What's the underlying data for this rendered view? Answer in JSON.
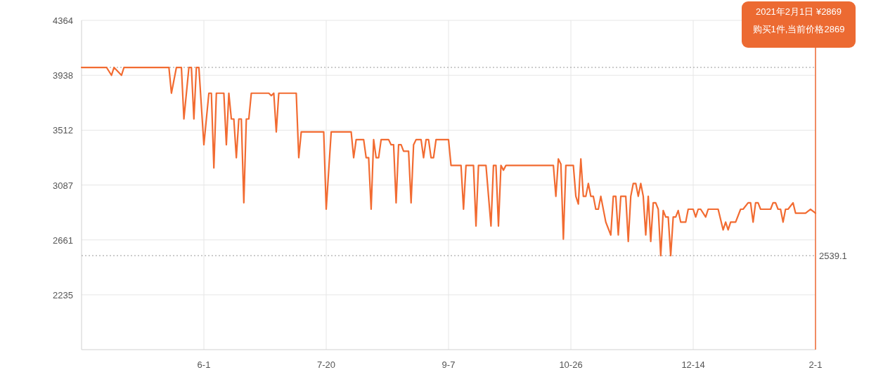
{
  "chart_data": {
    "type": "line",
    "xlim": [
      "2020-04-13",
      "2021-02-01"
    ],
    "xticks": [
      {
        "value": "2020-06-01",
        "label": "6-1"
      },
      {
        "value": "2020-07-20",
        "label": "7-20"
      },
      {
        "value": "2020-09-07",
        "label": "9-7"
      },
      {
        "value": "2020-10-26",
        "label": "10-26"
      },
      {
        "value": "2020-12-14",
        "label": "12-14"
      },
      {
        "value": "2021-02-01",
        "label": "2-1"
      }
    ],
    "ylim": [
      1810,
      4364
    ],
    "yticks": [
      4364,
      3938,
      3512,
      3087,
      2661,
      2235
    ],
    "grid": true,
    "x": [
      "2020-04-13",
      "2020-04-23",
      "2020-04-25",
      "2020-04-26",
      "2020-04-29",
      "2020-04-30",
      "2020-05-18",
      "2020-05-19",
      "2020-05-21",
      "2020-05-23",
      "2020-05-24",
      "2020-05-26",
      "2020-05-27",
      "2020-05-28",
      "2020-05-29",
      "2020-05-30",
      "2020-06-01",
      "2020-06-03",
      "2020-06-04",
      "2020-06-05",
      "2020-06-06",
      "2020-06-09",
      "2020-06-10",
      "2020-06-11",
      "2020-06-12",
      "2020-06-13",
      "2020-06-14",
      "2020-06-15",
      "2020-06-16",
      "2020-06-17",
      "2020-06-18",
      "2020-06-19",
      "2020-06-20",
      "2020-06-27",
      "2020-06-28",
      "2020-06-29",
      "2020-06-30",
      "2020-07-01",
      "2020-07-08",
      "2020-07-09",
      "2020-07-10",
      "2020-07-19",
      "2020-07-20",
      "2020-07-22",
      "2020-07-30",
      "2020-07-31",
      "2020-08-01",
      "2020-08-04",
      "2020-08-05",
      "2020-08-06",
      "2020-08-07",
      "2020-08-08",
      "2020-08-09",
      "2020-08-10",
      "2020-08-11",
      "2020-08-14",
      "2020-08-15",
      "2020-08-16",
      "2020-08-17",
      "2020-08-18",
      "2020-08-19",
      "2020-08-20",
      "2020-08-22",
      "2020-08-23",
      "2020-08-24",
      "2020-08-25",
      "2020-08-27",
      "2020-08-28",
      "2020-08-29",
      "2020-08-30",
      "2020-08-31",
      "2020-09-01",
      "2020-09-02",
      "2020-09-07",
      "2020-09-08",
      "2020-09-12",
      "2020-09-13",
      "2020-09-14",
      "2020-09-17",
      "2020-09-18",
      "2020-09-19",
      "2020-09-22",
      "2020-09-24",
      "2020-09-25",
      "2020-09-26",
      "2020-09-27",
      "2020-09-28",
      "2020-09-29",
      "2020-09-30",
      "2020-10-19",
      "2020-10-20",
      "2020-10-21",
      "2020-10-22",
      "2020-10-23",
      "2020-10-24",
      "2020-10-27",
      "2020-10-28",
      "2020-10-29",
      "2020-10-30",
      "2020-10-31",
      "2020-11-01",
      "2020-11-02",
      "2020-11-03",
      "2020-11-04",
      "2020-11-05",
      "2020-11-06",
      "2020-11-07",
      "2020-11-09",
      "2020-11-11",
      "2020-11-12",
      "2020-11-13",
      "2020-11-14",
      "2020-11-15",
      "2020-11-17",
      "2020-11-18",
      "2020-11-19",
      "2020-11-20",
      "2020-11-21",
      "2020-11-22",
      "2020-11-23",
      "2020-11-24",
      "2020-11-25",
      "2020-11-26",
      "2020-11-27",
      "2020-11-28",
      "2020-11-29",
      "2020-11-30",
      "2020-12-01",
      "2020-12-02",
      "2020-12-03",
      "2020-12-04",
      "2020-12-05",
      "2020-12-06",
      "2020-12-07",
      "2020-12-08",
      "2020-12-09",
      "2020-12-11",
      "2020-12-12",
      "2020-12-14",
      "2020-12-15",
      "2020-12-16",
      "2020-12-17",
      "2020-12-19",
      "2020-12-20",
      "2020-12-24",
      "2020-12-26",
      "2020-12-27",
      "2020-12-28",
      "2020-12-29",
      "2020-12-31",
      "2021-01-02",
      "2021-01-03",
      "2021-01-05",
      "2021-01-06",
      "2021-01-07",
      "2021-01-08",
      "2021-01-09",
      "2021-01-10",
      "2021-01-14",
      "2021-01-15",
      "2021-01-16",
      "2021-01-17",
      "2021-01-18",
      "2021-01-19",
      "2021-01-20",
      "2021-01-21",
      "2021-01-23",
      "2021-01-24",
      "2021-01-28",
      "2021-01-30",
      "2021-02-01"
    ],
    "series": [
      {
        "color": "#f26b31",
        "values": [
          3999,
          3999,
          3938,
          3999,
          3938,
          3999,
          3999,
          3799,
          3999,
          3999,
          3599,
          3999,
          3999,
          3599,
          3999,
          3999,
          3399,
          3799,
          3799,
          3219,
          3799,
          3799,
          3399,
          3799,
          3599,
          3599,
          3299,
          3599,
          3599,
          2949,
          3599,
          3599,
          3799,
          3799,
          3780,
          3799,
          3499,
          3799,
          3799,
          3299,
          3499,
          3499,
          2899,
          3499,
          3499,
          3299,
          3439,
          3439,
          3299,
          3299,
          2899,
          3439,
          3299,
          3299,
          3439,
          3439,
          3399,
          3399,
          2949,
          3399,
          3399,
          3349,
          3349,
          2949,
          3399,
          3439,
          3439,
          3299,
          3439,
          3439,
          3299,
          3299,
          3439,
          3439,
          3239,
          3239,
          2899,
          3239,
          3239,
          2769,
          3239,
          3239,
          2769,
          3239,
          3239,
          2769,
          3239,
          3202,
          3239,
          3239,
          2999,
          3289,
          3249,
          2667,
          3239,
          3239,
          2999,
          2939,
          3289,
          2999,
          2999,
          3099,
          2999,
          2999,
          2899,
          2899,
          2999,
          2799,
          2699,
          2999,
          2999,
          2699,
          2999,
          2999,
          2649,
          2999,
          3099,
          3099,
          2999,
          3099,
          2999,
          2699,
          2999,
          2649,
          2949,
          2949,
          2899,
          2539,
          2889,
          2839,
          2839,
          2539,
          2839,
          2839,
          2889,
          2799,
          2799,
          2899,
          2899,
          2839,
          2899,
          2899,
          2839,
          2899,
          2899,
          2739,
          2799,
          2739,
          2799,
          2799,
          2899,
          2899,
          2949,
          2949,
          2799,
          2949,
          2949,
          2899,
          2899,
          2949,
          2949,
          2899,
          2899,
          2799,
          2899,
          2899,
          2949,
          2869,
          2869,
          2899,
          2869
        ]
      }
    ],
    "ref_lines": [
      {
        "axis": "y",
        "value": 3999,
        "color": "#999999",
        "line_style": "dotted"
      },
      {
        "axis": "y",
        "value": 2539.1,
        "label": "2539.1",
        "color": "#999999",
        "line_style": "dotted"
      },
      {
        "axis": "x",
        "value": "2021-02-01",
        "color": "#f06a33",
        "line_style": "solid"
      }
    ],
    "annotations": [
      "2021年2月1日 ¥2869\n购买1件,当前价格2869"
    ]
  }
}
